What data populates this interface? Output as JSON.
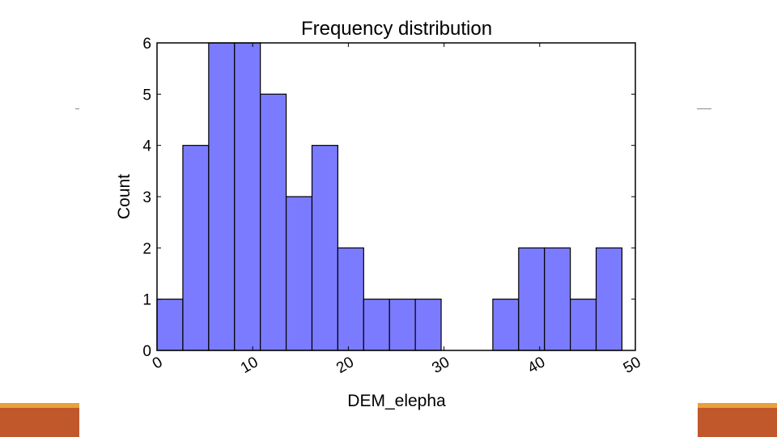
{
  "chart_data": {
    "type": "bar",
    "title": "Frequency distribution",
    "xlabel": "DEM_elepha",
    "ylabel": "Count",
    "xlim": [
      0,
      50
    ],
    "ylim": [
      0,
      6
    ],
    "xticks": [
      0,
      10,
      20,
      30,
      40,
      50
    ],
    "yticks": [
      0,
      1,
      2,
      3,
      4,
      5,
      6
    ],
    "grid": false,
    "bin_edges": [
      0,
      2.7,
      5.4,
      8.1,
      10.8,
      13.5,
      16.2,
      18.9,
      21.6,
      24.3,
      27,
      29.7,
      32.4,
      35.1,
      37.8,
      40.5,
      43.2,
      45.9,
      48.6
    ],
    "values": [
      1,
      4,
      6,
      6,
      5,
      3,
      4,
      2,
      1,
      1,
      1,
      0,
      0,
      1,
      2,
      2,
      1,
      2
    ],
    "bar_color": "#7b7bff",
    "bar_edge_color": "#000000"
  },
  "slide": {
    "accent_color": "#c0582b",
    "accent_top_color": "#e9a03b"
  }
}
